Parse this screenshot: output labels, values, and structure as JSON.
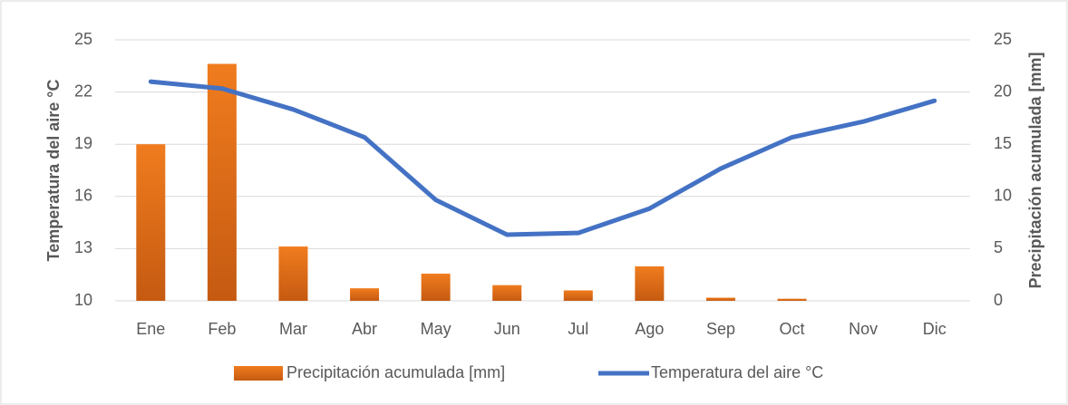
{
  "chart_data": {
    "type": "bar_line",
    "categories": [
      "Ene",
      "Feb",
      "Mar",
      "Abr",
      "May",
      "Jun",
      "Jul",
      "Ago",
      "Sep",
      "Oct",
      "Nov",
      "Dic"
    ],
    "series": [
      {
        "name": "Precipitación acumulada [mm]",
        "type": "bar",
        "axis": "y2",
        "color": "#f07c1e",
        "values": [
          15.0,
          22.7,
          5.2,
          1.2,
          2.6,
          1.5,
          1.0,
          3.3,
          0.3,
          0.2,
          0,
          0
        ]
      },
      {
        "name": "Temperatura del aire °C",
        "type": "line",
        "color": "#4472c4",
        "values": [
          22.6,
          22.2,
          21.0,
          19.4,
          15.8,
          13.8,
          13.9,
          15.3,
          17.6,
          19.4,
          20.3,
          21.5
        ]
      }
    ],
    "ylabel": "Temperatura del aire °C",
    "y2label": "Precipitación acumulada [mm]",
    "ylim": [
      10,
      25
    ],
    "yticks": [
      10,
      13,
      16,
      19,
      22,
      25
    ],
    "y2lim": [
      0,
      25
    ],
    "y2ticks": [
      0,
      5,
      10,
      15,
      20,
      25
    ],
    "grid": true,
    "legend": "bottom"
  }
}
